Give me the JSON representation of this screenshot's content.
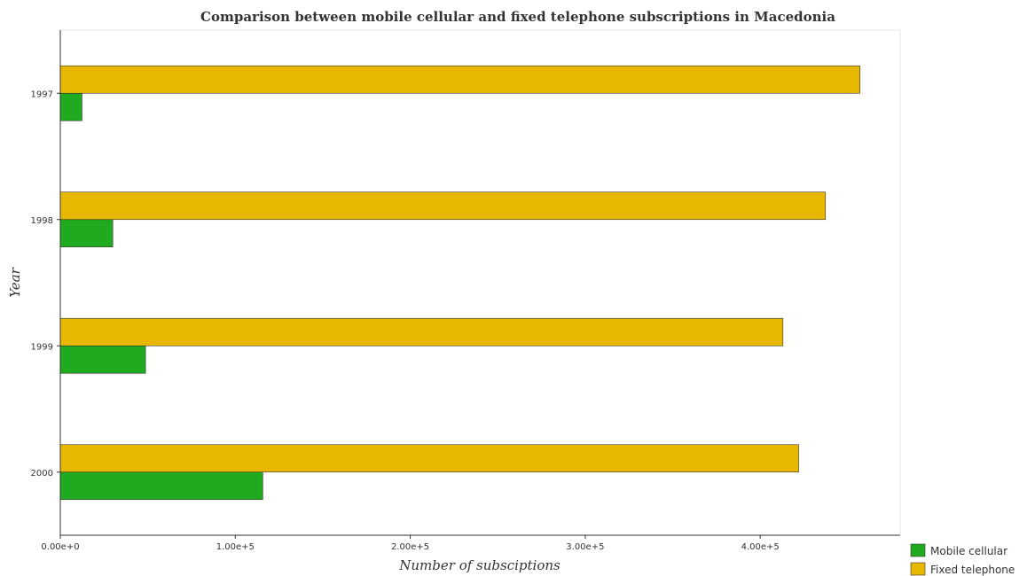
{
  "chart_data": {
    "type": "bar",
    "orientation": "horizontal",
    "title": "Comparison between mobile cellular and fixed telephone subscriptions in Macedonia",
    "xlabel": "Number of subsciptions",
    "ylabel": "Year",
    "categories": [
      "1997",
      "1998",
      "1999",
      "2000"
    ],
    "x_ticks": [
      0,
      100000,
      200000,
      300000,
      400000
    ],
    "x_tick_labels": [
      "0.00e+0",
      "1.00e+5",
      "2.00e+5",
      "3.00e+5",
      "4.00e+5"
    ],
    "xlim": [
      0,
      480000
    ],
    "grid": false,
    "legend_position": "bottom-right",
    "series": [
      {
        "name": "Mobile cellular",
        "color": "#1faa1f",
        "values": [
          12400,
          30000,
          48700,
          115700
        ]
      },
      {
        "name": "Fixed telephone",
        "color": "#e8b800",
        "values": [
          457000,
          437300,
          413000,
          422000
        ]
      }
    ]
  }
}
